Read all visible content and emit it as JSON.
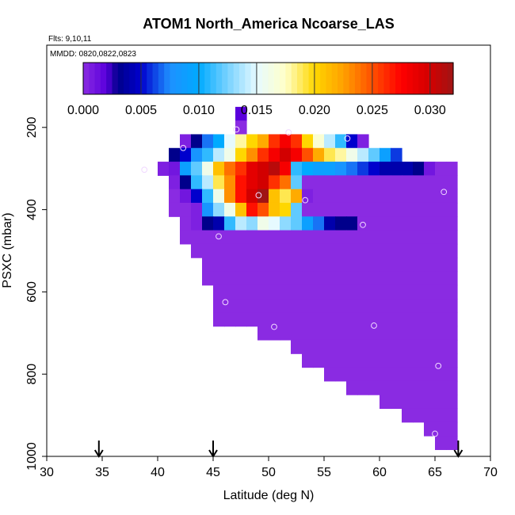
{
  "chart_data": {
    "type": "heatmap",
    "title": "ATOM1 North_America Ncoarse_LAS",
    "flights_text": "Flts: 9,10,11",
    "dates_text": "MMDD: 0820,0822,0823",
    "xlabel": "Latitude (deg N)",
    "ylabel": "PSXC (mbar)",
    "xlim": [
      30,
      70
    ],
    "ylim": [
      1000,
      0
    ],
    "x_ticks": [
      "30",
      "35",
      "40",
      "45",
      "50",
      "55",
      "60",
      "65",
      "70"
    ],
    "y_ticks": [
      "200",
      "400",
      "600",
      "800",
      "1000"
    ],
    "colorbar": {
      "range": [
        0,
        0.032
      ],
      "tick_values": [
        0,
        0.005,
        0.01,
        0.015,
        0.02,
        0.025,
        0.03
      ],
      "tick_labels": [
        "0.000",
        "0.005",
        "0.010",
        "0.015",
        "0.020",
        "0.025",
        "0.030"
      ]
    },
    "cell_size": {
      "lat": 1,
      "pressure": 33.3
    },
    "rows": [
      {
        "p": 166.7,
        "lat0": 47.0,
        "values": [
          0.002
        ]
      },
      {
        "p": 200.0,
        "lat0": 47.0,
        "values": [
          0.0
        ]
      },
      {
        "p": 233.3,
        "lat0": 42.0,
        "values": [
          0.0005,
          0.003,
          0.007,
          0.01,
          0.015,
          0.018,
          0.02,
          0.022,
          0.026,
          0.028,
          0.026,
          0.02,
          0.017,
          0.014,
          0.011,
          0.005,
          0.0005
        ]
      },
      {
        "p": 266.7,
        "lat0": 41.0,
        "values": [
          0.003,
          0.005,
          0.008,
          0.011,
          0.014,
          0.016,
          0.02,
          0.023,
          0.026,
          0.028,
          0.03,
          0.028,
          0.025,
          0.022,
          0.019,
          0.018,
          0.016,
          0.014,
          0.012,
          0.009,
          0.006
        ]
      },
      {
        "p": 300.0,
        "lat0": 40.0,
        "values": [
          0.0005,
          0.001,
          0.009,
          0.012,
          0.016,
          0.021,
          0.024,
          0.026,
          0.029,
          0.03,
          0.031,
          0.028,
          0.011,
          0.01,
          0.009,
          0.009,
          0.008,
          0.007,
          0.006,
          0.005,
          0.004,
          0.004,
          0.004,
          0.003,
          0.001,
          0.0,
          0.0
        ]
      },
      {
        "p": 333.3,
        "lat0": 41.0,
        "values": [
          0.0005,
          0.003,
          0.011,
          0.014,
          0.019,
          0.023,
          0.027,
          0.029,
          0.03,
          0.026,
          0.024,
          0.012,
          0.0,
          0.0,
          0.0,
          0.0,
          0.0,
          0.0,
          0.0,
          0.0,
          0.0,
          0.0,
          0.0,
          0.0,
          0.0,
          0.0
        ]
      },
      {
        "p": 366.7,
        "lat0": 41.0,
        "values": [
          0.0,
          0.001,
          0.005,
          0.011,
          0.016,
          0.023,
          0.027,
          0.03,
          0.032,
          0.021,
          0.019,
          0.022,
          0.0005,
          0.0,
          0.0,
          0.0,
          0.0,
          0.0,
          0.0,
          0.0,
          0.0,
          0.0,
          0.0,
          0.0,
          0.0,
          0.0
        ]
      },
      {
        "p": 400.0,
        "lat0": 41.0,
        "values": [
          0.0,
          0.0,
          0.0005,
          0.008,
          0.013,
          0.016,
          0.021,
          0.027,
          0.025,
          0.021,
          0.02,
          0.012,
          0.0,
          0.0,
          0.0,
          0.0,
          0.0,
          0.0,
          0.0,
          0.0,
          0.0,
          0.0,
          0.0,
          0.0,
          0.0,
          0.0
        ]
      },
      {
        "p": 433.3,
        "lat0": 42.0,
        "values": [
          0.0,
          0.0005,
          0.003,
          0.004,
          0.011,
          0.014,
          0.013,
          0.016,
          0.015,
          0.013,
          0.012,
          0.009,
          0.007,
          0.004,
          0.003,
          0.003,
          0.0,
          0.0,
          0.0,
          0.0,
          0.0,
          0.0,
          0.0,
          0.0,
          0.0
        ]
      },
      {
        "p": 466.7,
        "lat0": 42.0,
        "values": [
          0.0,
          0.0,
          0.0,
          0.0,
          0.0,
          0.0,
          0.0,
          0.0,
          0.0,
          0.0,
          0.0,
          0.0,
          0.0,
          0.0,
          0.0,
          0.0,
          0.0,
          0.0,
          0.0,
          0.0,
          0.0,
          0.0,
          0.0,
          0.0,
          0.0
        ]
      },
      {
        "p": 500.0,
        "lat0": 43.0,
        "values": [
          0.0,
          0.0,
          0.0,
          0.0,
          0.0,
          0.0,
          0.0,
          0.0,
          0.0,
          0.0,
          0.0,
          0.0,
          0.0,
          0.0,
          0.0,
          0.0,
          0.0,
          0.0,
          0.0,
          0.0,
          0.0,
          0.0,
          0.0,
          0.0
        ]
      },
      {
        "p": 533.3,
        "lat0": 44.0,
        "values": [
          0.0,
          0.0,
          0.0,
          0.0,
          0.0,
          0.0,
          0.0,
          0.0,
          0.0,
          0.0,
          0.0,
          0.0,
          0.0,
          0.0,
          0.0,
          0.0,
          0.0,
          0.0,
          0.0,
          0.0,
          0.0,
          0.0,
          0.0
        ]
      },
      {
        "p": 566.7,
        "lat0": 44.0,
        "values": [
          0.0,
          0.0,
          0.0,
          0.0,
          0.0,
          0.0,
          0.0,
          0.0,
          0.0,
          0.0,
          0.0,
          0.0,
          0.0,
          0.0,
          0.0,
          0.0,
          0.0,
          0.0,
          0.0,
          0.0,
          0.0,
          0.0,
          0.0
        ]
      },
      {
        "p": 600.0,
        "lat0": 45.0,
        "values": [
          0.0,
          0.0,
          0.0,
          0.0,
          0.0,
          0.0,
          0.0,
          0.0,
          0.0,
          0.0,
          0.0,
          0.0,
          0.0,
          0.0,
          0.0,
          0.0,
          0.0,
          0.0,
          0.0,
          0.0,
          0.0,
          0.0
        ]
      },
      {
        "p": 633.3,
        "lat0": 45.0,
        "values": [
          0.0,
          0.0,
          0.0,
          0.0,
          0.0,
          0.0,
          0.0,
          0.0,
          0.0,
          0.0,
          0.0,
          0.0,
          0.0,
          0.0,
          0.0,
          0.0,
          0.0,
          0.0,
          0.0,
          0.0,
          0.0,
          0.0
        ]
      },
      {
        "p": 666.7,
        "lat0": 45.0,
        "values": [
          0.0,
          0.0,
          0.0,
          0.0,
          0.0,
          0.0,
          0.0,
          0.0,
          0.0,
          0.0,
          0.0,
          0.0,
          0.0,
          0.0,
          0.0,
          0.0,
          0.0,
          0.0,
          0.0,
          0.0,
          0.0,
          0.0
        ]
      },
      {
        "p": 700.0,
        "lat0": 49.0,
        "values": [
          0.0,
          0.0,
          0.0,
          0.0,
          0.0,
          0.0,
          0.0,
          0.0,
          0.0,
          0.0,
          0.0,
          0.0,
          0.0,
          0.0,
          0.0,
          0.0,
          0.0,
          0.0
        ]
      },
      {
        "p": 733.3,
        "lat0": 52.0,
        "values": [
          0.0,
          0.0,
          0.0,
          0.0,
          0.0,
          0.0,
          0.0,
          0.0,
          0.0,
          0.0,
          0.0,
          0.0,
          0.0,
          0.0,
          0.0
        ]
      },
      {
        "p": 766.7,
        "lat0": 53.0,
        "values": [
          0.0,
          0.0,
          0.0,
          0.0,
          0.0,
          0.0,
          0.0,
          0.0,
          0.0,
          0.0,
          0.0,
          0.0,
          0.0,
          0.0
        ]
      },
      {
        "p": 800.0,
        "lat0": 55.0,
        "values": [
          0.0,
          0.0,
          0.0,
          0.0,
          0.0,
          0.0,
          0.0,
          0.0,
          0.0,
          0.0,
          0.0,
          0.0
        ]
      },
      {
        "p": 833.3,
        "lat0": 57.0,
        "values": [
          0.0,
          0.0,
          0.0,
          0.0,
          0.0,
          0.0,
          0.0,
          0.0,
          0.0,
          0.0
        ]
      },
      {
        "p": 866.7,
        "lat0": 60.0,
        "values": [
          0.0,
          0.0,
          0.0,
          0.0,
          0.0,
          0.0,
          0.0
        ]
      },
      {
        "p": 900.0,
        "lat0": 62.0,
        "values": [
          0.0,
          0.0,
          0.0,
          0.0,
          0.0
        ]
      },
      {
        "p": 933.3,
        "lat0": 64.0,
        "values": [
          0.0,
          0.0,
          0.0
        ]
      },
      {
        "p": 966.7,
        "lat0": 65.0,
        "values": [
          0.0,
          0.0
        ]
      }
    ],
    "sample_points": [
      {
        "lat": 47.1,
        "p": 205
      },
      {
        "lat": 51.8,
        "p": 212
      },
      {
        "lat": 57.1,
        "p": 227
      },
      {
        "lat": 42.3,
        "p": 250
      },
      {
        "lat": 38.8,
        "p": 303
      },
      {
        "lat": 65.8,
        "p": 357
      },
      {
        "lat": 49.1,
        "p": 365
      },
      {
        "lat": 53.3,
        "p": 377
      },
      {
        "lat": 58.5,
        "p": 437
      },
      {
        "lat": 45.5,
        "p": 465
      },
      {
        "lat": 46.1,
        "p": 625
      },
      {
        "lat": 50.5,
        "p": 685
      },
      {
        "lat": 59.5,
        "p": 682
      },
      {
        "lat": 65.3,
        "p": 780
      },
      {
        "lat": 65.0,
        "p": 945
      }
    ],
    "markers_lat": [
      34.7,
      45.0,
      67.1
    ]
  }
}
